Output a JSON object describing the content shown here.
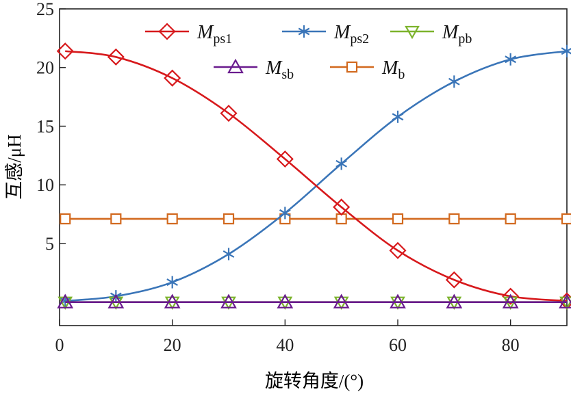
{
  "chart_data": {
    "type": "line",
    "xlabel": "旋转角度/(°)",
    "ylabel": "互感/μH",
    "xlim": [
      0,
      90
    ],
    "ylim": [
      -2,
      25
    ],
    "xticks": [
      0,
      20,
      40,
      60,
      80
    ],
    "yticks": [
      5,
      10,
      15,
      20,
      25
    ],
    "grid": false,
    "legend": "top",
    "x": [
      1,
      10,
      20,
      30,
      40,
      50,
      60,
      70,
      80,
      90
    ],
    "series": [
      {
        "name": "M",
        "sub": "ps1",
        "color": "#d7191c",
        "marker": "diamond",
        "values": [
          21.4,
          20.9,
          19.1,
          16.1,
          12.2,
          8.1,
          4.4,
          1.9,
          0.5,
          0.1
        ]
      },
      {
        "name": "M",
        "sub": "ps2",
        "color": "#3a75b8",
        "marker": "asterisk",
        "values": [
          0.1,
          0.5,
          1.7,
          4.1,
          7.6,
          11.8,
          15.8,
          18.8,
          20.7,
          21.4
        ]
      },
      {
        "name": "M",
        "sub": "pb",
        "color": "#7cb32c",
        "marker": "triangle-down",
        "values": [
          0,
          0,
          0,
          0,
          0,
          0,
          0,
          0,
          0,
          0
        ]
      },
      {
        "name": "M",
        "sub": "sb",
        "color": "#6a1b8e",
        "marker": "triangle-up",
        "values": [
          0,
          0,
          0,
          0,
          0,
          0,
          0,
          0,
          0,
          0
        ]
      },
      {
        "name": "M",
        "sub": "b",
        "color": "#d2691e",
        "marker": "square",
        "values": [
          7.1,
          7.1,
          7.1,
          7.1,
          7.1,
          7.1,
          7.1,
          7.1,
          7.1,
          7.1
        ]
      }
    ]
  }
}
